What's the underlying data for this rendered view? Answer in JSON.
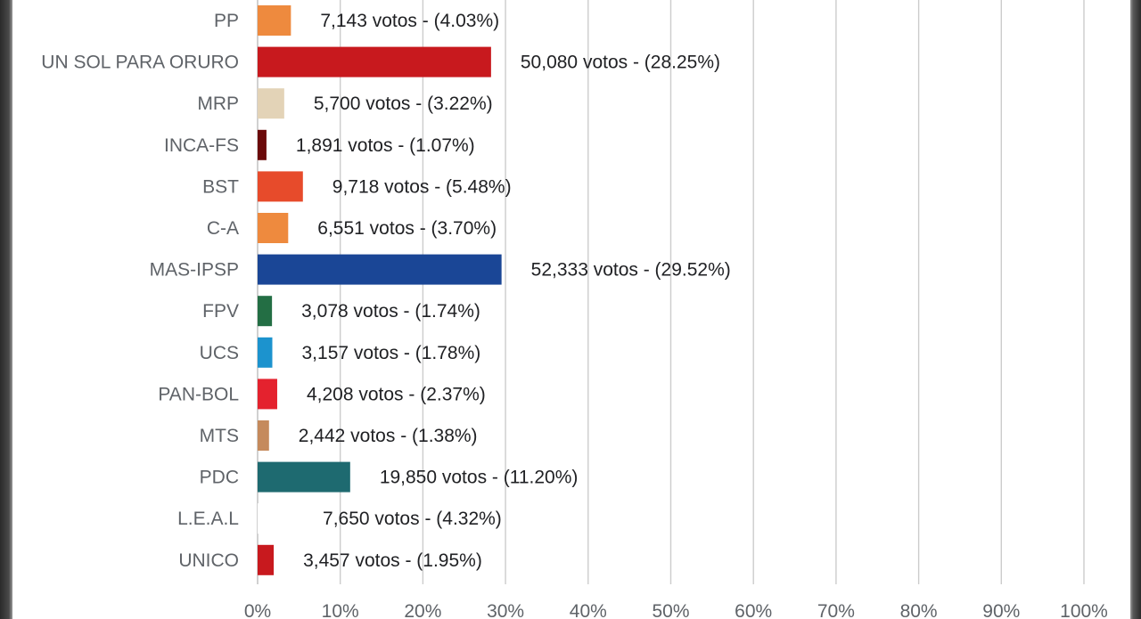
{
  "chart_data": {
    "type": "bar",
    "orientation": "horizontal",
    "categories": [
      "PP",
      "UN SOL PARA ORURO",
      "MRP",
      "INCA-FS",
      "BST",
      "C-A",
      "MAS-IPSP",
      "FPV",
      "UCS",
      "PAN-BOL",
      "MTS",
      "PDC",
      "L.E.A.L",
      "UNICO"
    ],
    "votes": [
      7143,
      50080,
      5700,
      1891,
      9718,
      6551,
      52333,
      3078,
      3157,
      4208,
      2442,
      19850,
      7650,
      3457
    ],
    "values": [
      4.03,
      28.25,
      3.22,
      1.07,
      5.48,
      3.7,
      29.52,
      1.74,
      1.78,
      2.37,
      1.38,
      11.2,
      4.32,
      1.95
    ],
    "bar_labels": [
      "7,143 votos - (4.03%)",
      "50,080 votos - (28.25%)",
      "5,700 votos - (3.22%)",
      "1,891 votos - (1.07%)",
      "9,718 votos - (5.48%)",
      "6,551 votos - (3.70%)",
      "52,333 votos - (29.52%)",
      "3,078 votos - (1.74%)",
      "3,157 votos - (1.78%)",
      "4,208 votos - (2.37%)",
      "2,442 votos - (1.38%)",
      "19,850 votos - (11.20%)",
      "7,650 votos - (4.32%)",
      "3,457 votos - (1.95%)"
    ],
    "colors": [
      "#EE8A3E",
      "#C8191E",
      "#E3D3B7",
      "#6B0A0A",
      "#E74B2B",
      "#EE8A3E",
      "#1A4696",
      "#236E44",
      "#1C93CE",
      "#E4222E",
      "#C58A5C",
      "#1E6A70",
      "#FFFFFF",
      "#C8191E"
    ],
    "xlim": [
      0,
      100
    ],
    "x_ticks": [
      "0%",
      "10%",
      "20%",
      "30%",
      "40%",
      "50%",
      "60%",
      "70%",
      "80%",
      "90%",
      "100%"
    ],
    "grid": true,
    "title": "",
    "xlabel": "",
    "ylabel": ""
  }
}
